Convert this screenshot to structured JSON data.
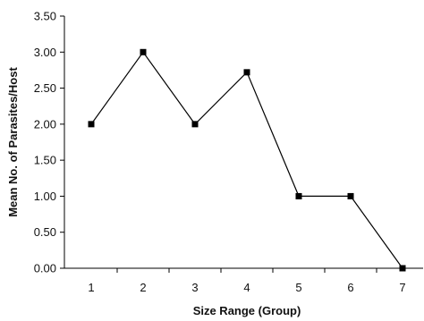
{
  "chart_data": {
    "type": "line",
    "title": "",
    "xlabel": "Size Range (Group)",
    "ylabel": "Mean No. of Parasites/Host",
    "categories": [
      "1",
      "2",
      "3",
      "4",
      "5",
      "6",
      "7"
    ],
    "series": [
      {
        "values": [
          2.0,
          3.0,
          2.0,
          2.72,
          1.0,
          1.0,
          0.0
        ]
      }
    ],
    "ylim": [
      0,
      3.5
    ],
    "yticks": [
      "0.00",
      "0.50",
      "1.00",
      "1.50",
      "2.00",
      "2.50",
      "3.00",
      "3.50"
    ],
    "grid": false,
    "legend": "none",
    "marker": "square",
    "colors": {
      "line": "#000000",
      "marker": "#000000",
      "axis": "#000000"
    }
  }
}
